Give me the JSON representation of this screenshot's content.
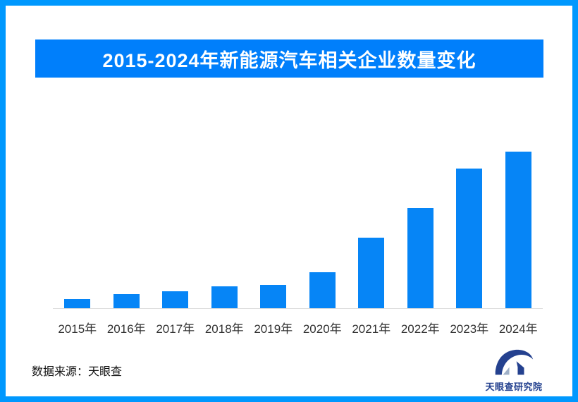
{
  "frame": {
    "border_color": "#0098FE",
    "background_color": "#FFFFFF"
  },
  "header": {
    "banner_color": "#007FFB",
    "title_color": "#FFFFFF"
  },
  "chart_data": {
    "type": "bar",
    "title": "2015-2024年新能源汽车相关企业数量变化",
    "categories": [
      "2015年",
      "2016年",
      "2017年",
      "2018年",
      "2019年",
      "2020年",
      "2021年",
      "2022年",
      "2023年",
      "2024年"
    ],
    "values": [
      6,
      9,
      11,
      14,
      15,
      23,
      45,
      64,
      89,
      100
    ],
    "value_scale_note": "相对高度（最高柱=100），图中未标注具体数值",
    "xlabel": "",
    "ylabel": "",
    "ylim": [
      0,
      100
    ],
    "grid": false,
    "legend": false,
    "y_axis_shown": false,
    "bar_color": "#0685F6",
    "axis_line_color": "#DCDCDC",
    "tick_label_color": "#333333"
  },
  "footer": {
    "source_label": "数据来源：天眼查",
    "brand_name": "天眼查研究院",
    "brand_color": "#24418F",
    "logo_icon": "tianyancha-eye-logo"
  }
}
